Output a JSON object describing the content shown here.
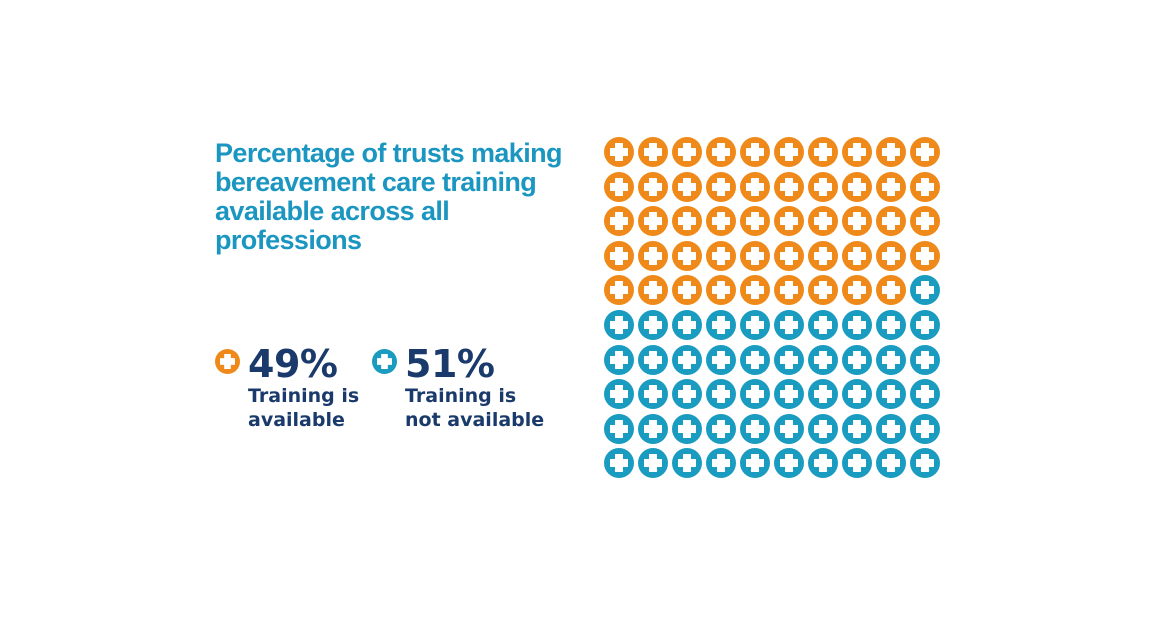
{
  "title": "Percentage of trusts making bereavement care training available across all professions",
  "colors": {
    "available": "#ef8a1a",
    "not_available": "#1a9bc0",
    "title": "#1b96c1",
    "text": "#1a3a6b"
  },
  "legend": [
    {
      "pct": "49%",
      "label": "Training is available",
      "line1": "Training is",
      "line2": "available",
      "color_key": "available"
    },
    {
      "pct": "51%",
      "label": "Training is not available",
      "line1": "Training is",
      "line2": "not available",
      "color_key": "not_available"
    }
  ],
  "icon": "medical-cross-icon",
  "chart_data": {
    "type": "waffle",
    "title": "Percentage of trusts making bereavement care training available across all professions",
    "rows": 10,
    "columns": 10,
    "categories": [
      "Training is available",
      "Training is not available"
    ],
    "values": [
      49,
      51
    ],
    "unit": "%",
    "colors": [
      "#ef8a1a",
      "#1a9bc0"
    ],
    "legend_position": "left-bottom"
  }
}
